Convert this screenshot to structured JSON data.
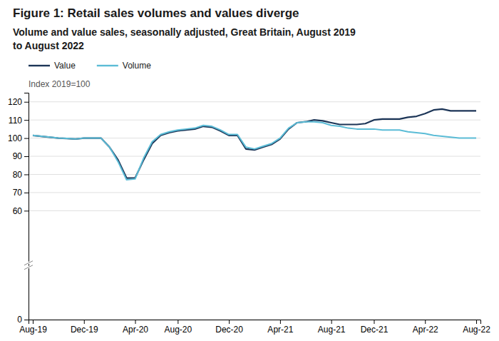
{
  "chart_data": {
    "type": "line",
    "title": "Figure 1: Retail sales volumes and values diverge",
    "subtitle": [
      "Volume and value sales, seasonally adjusted, Great Britain, August 2019",
      "to August 2022"
    ],
    "y_label": "Index 2019=100",
    "categories": [
      "Aug-19",
      null,
      null,
      null,
      null,
      null,
      "Dec-19",
      null,
      null,
      null,
      null,
      null,
      "Apr-20",
      null,
      null,
      null,
      null,
      "Aug-20",
      null,
      null,
      null,
      null,
      null,
      "Dec-20",
      null,
      null,
      null,
      null,
      null,
      "Apr-21",
      null,
      null,
      null,
      null,
      null,
      "Aug-21",
      null,
      null,
      null,
      null,
      "Dec-21",
      null,
      null,
      null,
      null,
      null,
      "Apr-22",
      null,
      null,
      null,
      null,
      null,
      "Aug-22"
    ],
    "series": [
      {
        "name": "Value",
        "color": "#1c3557",
        "values": [
          101.5,
          101.0,
          100.5,
          100.0,
          99.8,
          99.5,
          100.0,
          100.0,
          100.0,
          95.0,
          88.0,
          78.0,
          78.0,
          88.0,
          97.0,
          101.5,
          103.0,
          104.0,
          104.5,
          105.0,
          106.5,
          106.0,
          104.0,
          101.5,
          101.5,
          94.0,
          93.5,
          95.0,
          96.5,
          99.5,
          105.0,
          108.5,
          109.0,
          110.0,
          109.5,
          108.5,
          107.5,
          107.5,
          107.5,
          108.0,
          110.0,
          110.5,
          110.5,
          110.5,
          111.5,
          112.0,
          113.5,
          115.5,
          116.0,
          115.0,
          115.0,
          115.0,
          115.0
        ]
      },
      {
        "name": "Volume",
        "color": "#5bbcd6",
        "values": [
          101.5,
          101.0,
          100.5,
          100.0,
          99.8,
          99.5,
          100.0,
          100.0,
          100.0,
          95.0,
          87.0,
          77.0,
          77.5,
          89.0,
          98.0,
          102.0,
          103.5,
          104.5,
          105.0,
          105.5,
          107.0,
          106.5,
          104.5,
          102.0,
          102.0,
          95.0,
          94.0,
          95.5,
          97.0,
          100.0,
          105.5,
          108.5,
          109.0,
          109.0,
          108.5,
          107.0,
          106.5,
          105.5,
          105.0,
          105.0,
          105.0,
          104.5,
          104.5,
          104.5,
          103.5,
          103.0,
          102.5,
          101.5,
          101.0,
          100.5,
          100.0,
          100.0,
          100.0
        ]
      }
    ],
    "ylim": [
      0,
      125
    ],
    "yticks": [
      0,
      60,
      70,
      80,
      90,
      100,
      110,
      120
    ],
    "grid": true,
    "legend": "upper left"
  }
}
